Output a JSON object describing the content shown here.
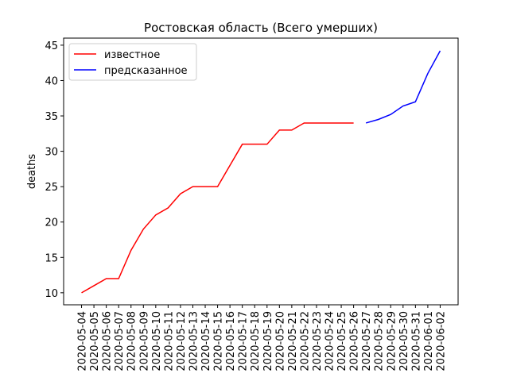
{
  "chart_data": {
    "type": "line",
    "title": "Ростовская область (Всего умерших)",
    "y_label": "deaths",
    "categories": [
      "2020-05-04",
      "2020-05-05",
      "2020-05-06",
      "2020-05-07",
      "2020-05-08",
      "2020-05-09",
      "2020-05-10",
      "2020-05-11",
      "2020-05-12",
      "2020-05-13",
      "2020-05-14",
      "2020-05-15",
      "2020-05-16",
      "2020-05-17",
      "2020-05-18",
      "2020-05-19",
      "2020-05-20",
      "2020-05-21",
      "2020-05-22",
      "2020-05-23",
      "2020-05-24",
      "2020-05-25",
      "2020-05-26",
      "2020-05-27",
      "2020-05-28",
      "2020-05-29",
      "2020-05-30",
      "2020-05-31",
      "2020-06-01",
      "2020-06-02"
    ],
    "series": [
      {
        "name": "известное",
        "color": "#ff0000",
        "values": [
          10,
          11,
          12,
          12,
          16,
          19,
          21,
          22,
          24,
          25,
          25,
          25,
          28,
          31,
          31,
          31,
          33,
          33,
          34,
          34,
          34,
          34,
          34,
          null,
          null,
          null,
          null,
          null,
          null,
          null
        ]
      },
      {
        "name": "предсказанное",
        "color": "#0000ff",
        "values": [
          null,
          null,
          null,
          null,
          null,
          null,
          null,
          null,
          null,
          null,
          null,
          null,
          null,
          null,
          null,
          null,
          null,
          null,
          null,
          null,
          null,
          null,
          null,
          34,
          34.5,
          35.2,
          36.4,
          37,
          41,
          44.2
        ]
      }
    ],
    "ylim": [
      8.3,
      46.0
    ],
    "yticks": [
      10,
      15,
      20,
      25,
      30,
      35,
      40,
      45
    ],
    "legend": "upper-left"
  }
}
